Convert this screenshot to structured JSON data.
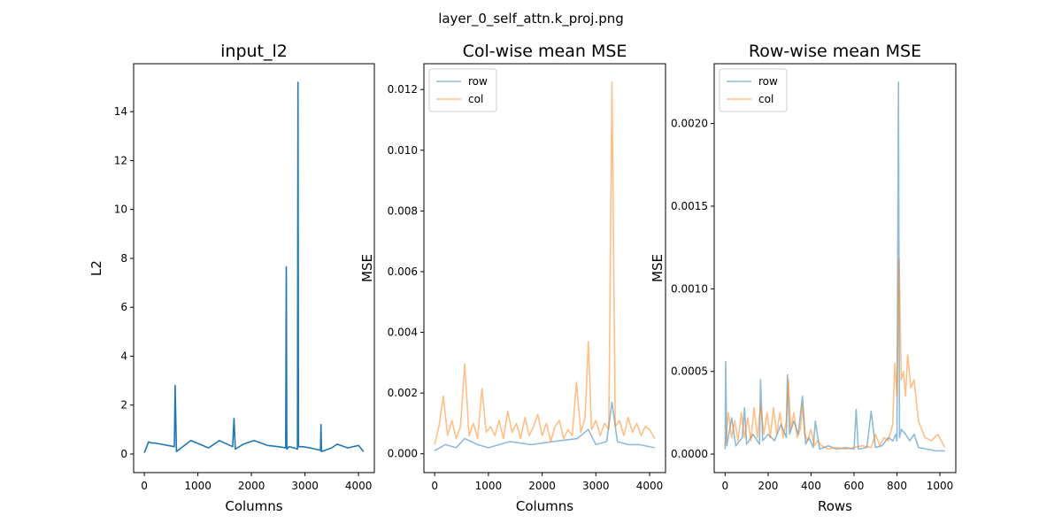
{
  "figure": {
    "suptitle": "layer_0_self_attn.k_proj.png"
  },
  "colors": {
    "blue": "#1f77b4",
    "orange": "#ff7f0e",
    "row_line": "#1f77b4",
    "col_line": "#ff7f0e"
  },
  "chart_data": [
    {
      "type": "line",
      "title": "input_l2",
      "xlabel": "Columns",
      "ylabel": "L2",
      "xlim": [
        -200,
        4296
      ],
      "ylim": [
        -0.76,
        15.96
      ],
      "xticks": [
        0,
        1000,
        2000,
        3000,
        4000
      ],
      "yticks": [
        0,
        2,
        4,
        6,
        8,
        10,
        12,
        14
      ],
      "xtick_labels": [
        "0",
        "1000",
        "2000",
        "3000",
        "4000"
      ],
      "ytick_labels": [
        "0",
        "2",
        "4",
        "6",
        "8",
        "10",
        "12",
        "14"
      ],
      "grid": false,
      "series": [
        {
          "color": "#1f77b4",
          "alpha": 1.0,
          "x": [
            0,
            80,
            130,
            200,
            560,
            575,
            600,
            870,
            1200,
            1400,
            1650,
            1675,
            1700,
            1850,
            2050,
            2300,
            2500,
            2640,
            2651,
            2662,
            2700,
            2800,
            2860,
            2870,
            2880,
            2950,
            3100,
            3290,
            3300,
            3310,
            3500,
            3600,
            3800,
            4000,
            4095
          ],
          "y": [
            0.05,
            0.5,
            0.45,
            0.45,
            0.3,
            2.8,
            0.1,
            0.55,
            0.25,
            0.55,
            0.3,
            1.45,
            0.2,
            0.4,
            0.55,
            0.35,
            0.3,
            0.25,
            7.65,
            0.2,
            0.3,
            0.25,
            0.2,
            15.2,
            0.3,
            0.3,
            0.25,
            0.15,
            1.2,
            0.1,
            0.25,
            0.4,
            0.25,
            0.35,
            0.1
          ]
        }
      ]
    },
    {
      "type": "line",
      "title": "Col-wise mean MSE",
      "xlabel": "Columns",
      "ylabel": "MSE",
      "xlim": [
        -200,
        4296
      ],
      "ylim": [
        -0.00062,
        0.01285
      ],
      "xticks": [
        0,
        1000,
        2000,
        3000,
        4000
      ],
      "yticks": [
        0.0,
        0.002,
        0.004,
        0.006,
        0.008,
        0.01,
        0.012
      ],
      "xtick_labels": [
        "0",
        "1000",
        "2000",
        "3000",
        "4000"
      ],
      "ytick_labels": [
        "0.000",
        "0.002",
        "0.004",
        "0.006",
        "0.008",
        "0.010",
        "0.012"
      ],
      "grid": false,
      "legend": {
        "placement": "top-left",
        "entries": [
          "row",
          "col"
        ]
      },
      "series": [
        {
          "name": "row",
          "color": "#1f77b4",
          "alpha": 0.5,
          "x": [
            0,
            200,
            400,
            560,
            800,
            1000,
            1400,
            1800,
            2200,
            2650,
            2860,
            3000,
            3200,
            3300,
            3400,
            3600,
            3800,
            4095
          ],
          "y": [
            0.0001,
            0.0003,
            0.0002,
            0.0005,
            0.0003,
            0.0002,
            0.0004,
            0.0003,
            0.0004,
            0.0005,
            0.0008,
            0.0003,
            0.0004,
            0.0017,
            0.0004,
            0.0003,
            0.0003,
            0.0002
          ]
        },
        {
          "name": "col",
          "color": "#ff7f0e",
          "alpha": 0.5,
          "x": [
            0,
            80,
            160,
            240,
            320,
            400,
            480,
            560,
            640,
            720,
            800,
            880,
            960,
            1040,
            1120,
            1200,
            1280,
            1360,
            1440,
            1520,
            1600,
            1680,
            1760,
            1840,
            1920,
            2000,
            2080,
            2160,
            2240,
            2320,
            2400,
            2480,
            2560,
            2640,
            2720,
            2800,
            2860,
            2920,
            3000,
            3080,
            3160,
            3240,
            3300,
            3360,
            3440,
            3520,
            3600,
            3680,
            3760,
            3840,
            3920,
            4000,
            4095
          ],
          "y": [
            0.0003,
            0.0009,
            0.0019,
            0.0006,
            0.0011,
            0.0005,
            0.0009,
            0.00295,
            0.0006,
            0.001,
            0.0005,
            0.00215,
            0.0007,
            0.0009,
            0.0006,
            0.0011,
            0.0005,
            0.0014,
            0.0007,
            0.001,
            0.0005,
            0.0012,
            0.0006,
            0.0009,
            0.0013,
            0.0006,
            0.001,
            0.0004,
            0.0009,
            0.0011,
            0.0005,
            0.0008,
            0.0006,
            0.00235,
            0.0007,
            0.0012,
            0.0037,
            0.0008,
            0.0011,
            0.0006,
            0.001,
            0.0008,
            0.01225,
            0.0009,
            0.0011,
            0.0006,
            0.0012,
            0.0007,
            0.001,
            0.0006,
            0.0009,
            0.0008,
            0.0005
          ]
        }
      ]
    },
    {
      "type": "line",
      "title": "Row-wise mean MSE",
      "xlabel": "Rows",
      "ylabel": "MSE",
      "xlim": [
        -51,
        1074
      ],
      "ylim": [
        -0.000112,
        0.002362
      ],
      "xticks": [
        0,
        200,
        400,
        600,
        800,
        1000
      ],
      "yticks": [
        0.0,
        0.0005,
        0.001,
        0.0015,
        0.002
      ],
      "xtick_labels": [
        "0",
        "200",
        "400",
        "600",
        "800",
        "1000"
      ],
      "ytick_labels": [
        "0.0000",
        "0.0005",
        "0.0010",
        "0.0015",
        "0.0020"
      ],
      "grid": false,
      "legend": {
        "placement": "top-left",
        "entries": [
          "row",
          "col"
        ]
      },
      "series": [
        {
          "name": "row",
          "color": "#1f77b4",
          "alpha": 0.5,
          "x": [
            0,
            2,
            8,
            30,
            50,
            80,
            90,
            100,
            130,
            160,
            165,
            175,
            200,
            230,
            260,
            285,
            290,
            300,
            320,
            340,
            360,
            375,
            390,
            410,
            420,
            440,
            480,
            520,
            560,
            600,
            610,
            620,
            660,
            680,
            700,
            730,
            760,
            780,
            795,
            800,
            807,
            812,
            820,
            840,
            860,
            880,
            900,
            940,
            980,
            1023
          ],
          "y": [
            3e-05,
            0.00056,
            5e-05,
            0.00022,
            5e-05,
            0.0001,
            0.00028,
            6e-05,
            0.00012,
            6e-05,
            0.00045,
            8e-05,
            0.00012,
            8e-05,
            0.00018,
            0.0001,
            0.00048,
            0.00012,
            0.0002,
            0.00012,
            0.00035,
            6e-05,
            0.0001,
            4e-05,
            0.0002,
            3e-05,
            5e-05,
            3e-05,
            4e-05,
            3e-05,
            0.00027,
            3e-05,
            4e-05,
            0.00026,
            4e-05,
            5e-05,
            0.0001,
            8e-05,
            0.00012,
            8e-05,
            0.00225,
            0.0001,
            0.00015,
            0.00012,
            8e-05,
            0.00012,
            4e-05,
            3e-05,
            2e-05,
            2e-05
          ]
        },
        {
          "name": "col",
          "color": "#ff7f0e",
          "alpha": 0.5,
          "x": [
            0,
            15,
            30,
            45,
            60,
            75,
            90,
            105,
            120,
            135,
            150,
            165,
            180,
            195,
            210,
            225,
            240,
            255,
            270,
            285,
            295,
            305,
            320,
            335,
            350,
            360,
            370,
            385,
            400,
            415,
            430,
            450,
            480,
            520,
            560,
            600,
            640,
            680,
            700,
            720,
            740,
            760,
            780,
            790,
            800,
            810,
            820,
            830,
            840,
            850,
            865,
            880,
            900,
            930,
            960,
            990,
            1023
          ],
          "y": [
            5e-05,
            0.00025,
            0.0001,
            0.0002,
            8e-05,
            0.00025,
            0.0001,
            0.00022,
            8e-05,
            0.00028,
            0.0001,
            0.0003,
            0.00012,
            0.00025,
            0.0001,
            0.00028,
            0.00012,
            0.00025,
            0.0001,
            0.0002,
            0.00045,
            0.00015,
            0.00025,
            0.0001,
            0.00015,
            0.0003,
            0.00012,
            8e-05,
            0.00015,
            5e-05,
            8e-05,
            5e-05,
            3e-05,
            4e-05,
            3e-05,
            4e-05,
            5e-05,
            4e-05,
            0.00012,
            5e-05,
            0.0001,
            8e-05,
            0.00018,
            0.00055,
            0.00035,
            0.00118,
            0.00045,
            0.0005,
            0.00035,
            0.0006,
            0.0004,
            0.00045,
            0.0002,
            0.0001,
            8e-05,
            0.00012,
            4e-05
          ]
        }
      ]
    }
  ]
}
